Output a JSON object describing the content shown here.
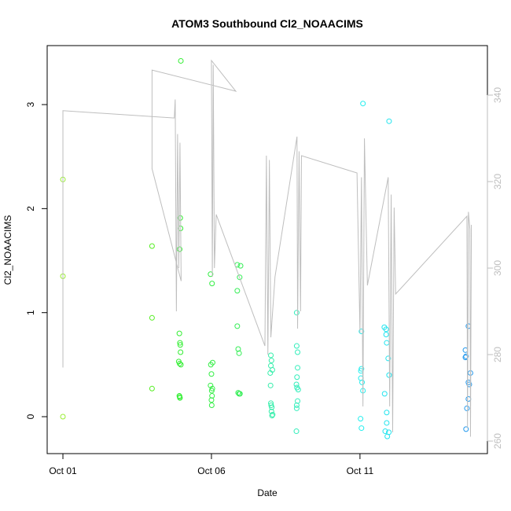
{
  "chart_data": {
    "type": "scatter",
    "title": "ATOM3 Southbound Cl2_NOAACIMS",
    "x_label": "Date",
    "y_label": "Cl2_NOAACIMS",
    "xlim": [
      -0.53,
      14.29
    ],
    "xticks": [
      {
        "value": 0,
        "label": "Oct 01"
      },
      {
        "value": 5,
        "label": "Oct 06"
      },
      {
        "value": 10,
        "label": "Oct 11"
      }
    ],
    "ylim": [
      -0.355,
      3.567
    ],
    "yticks": [
      0,
      1,
      2,
      3
    ],
    "y2lim": [
      257.1,
      351.45
    ],
    "y2ticks": [
      260,
      280,
      300,
      320,
      340
    ],
    "y2_color": "#bebebe",
    "series": [
      {
        "color": "#99ee33",
        "x": [
          0,
          0,
          0
        ],
        "values": [
          2.28,
          1.35,
          0.0
        ]
      },
      {
        "color": "#55ee22",
        "x": [
          3.0,
          3.0,
          3.0
        ],
        "values": [
          1.64,
          0.95,
          0.27
        ]
      },
      {
        "color": "#33ee33",
        "x": [
          3.97,
          3.95,
          3.96,
          3.93,
          3.92,
          3.94,
          3.95,
          3.96,
          3.9,
          3.93,
          3.97,
          3.92,
          3.93,
          3.94
        ],
        "values": [
          3.42,
          1.91,
          1.81,
          1.61,
          0.8,
          0.71,
          0.69,
          0.62,
          0.53,
          0.51,
          0.5,
          0.2,
          0.19,
          0.18
        ]
      },
      {
        "color": "#33ee44",
        "x": [
          4.97,
          5.02,
          5.04,
          4.98,
          5.0,
          4.97,
          5.03,
          5.01,
          5.02,
          5.0,
          5.01
        ],
        "values": [
          1.37,
          1.28,
          0.52,
          0.5,
          0.41,
          0.3,
          0.27,
          0.25,
          0.2,
          0.16,
          0.11
        ]
      },
      {
        "color": "#33ee55",
        "x": [
          5.87,
          5.98,
          5.95,
          5.87,
          5.87,
          5.9,
          5.93,
          5.9,
          5.96,
          5.93
        ],
        "values": [
          1.46,
          1.45,
          1.34,
          1.21,
          0.87,
          0.65,
          0.61,
          0.23,
          0.22,
          0.22
        ]
      },
      {
        "color": "#33eeaa",
        "x": [
          7.0,
          7.02,
          7.0,
          7.05,
          6.98,
          6.99,
          7.0,
          7.01,
          7.03,
          7.02,
          7.06,
          7.04
        ],
        "values": [
          0.59,
          0.54,
          0.49,
          0.45,
          0.42,
          0.3,
          0.13,
          0.11,
          0.09,
          0.05,
          0.02,
          0.01
        ]
      },
      {
        "color": "#33eebb",
        "x": [
          7.87,
          7.87,
          7.9,
          7.9,
          7.88,
          7.86,
          7.88,
          7.92,
          7.9,
          7.87,
          7.87,
          7.86
        ],
        "values": [
          1.0,
          0.68,
          0.62,
          0.47,
          0.38,
          0.31,
          0.28,
          0.26,
          0.15,
          0.11,
          0.08,
          -0.14
        ]
      },
      {
        "color": "#22eeee",
        "x": [
          10.1,
          10.05,
          10.05,
          10.03,
          10.03,
          10.07,
          10.1,
          10.02,
          10.05
        ],
        "values": [
          3.01,
          0.82,
          0.46,
          0.44,
          0.37,
          0.33,
          0.25,
          -0.02,
          -0.11
        ]
      },
      {
        "color": "#22e4ee",
        "x": [
          10.98,
          10.82,
          10.88,
          10.88,
          10.9,
          10.95,
          10.98,
          10.83,
          10.9,
          10.9,
          10.85,
          10.97,
          10.92
        ],
        "values": [
          2.84,
          0.86,
          0.84,
          0.79,
          0.71,
          0.56,
          0.4,
          0.22,
          0.04,
          -0.06,
          -0.14,
          -0.15,
          -0.19
        ]
      },
      {
        "color": "#2299ee",
        "x": [
          13.65,
          13.55,
          13.57,
          13.55,
          13.72,
          13.65,
          13.68,
          13.65,
          13.6,
          13.57
        ],
        "values": [
          0.87,
          0.64,
          0.58,
          0.57,
          0.42,
          0.33,
          0.31,
          0.17,
          0.08,
          -0.12
        ]
      },
      {
        "color": "#bebebe",
        "axis": "y2",
        "style": "line",
        "x": [
          0,
          0,
          3.75,
          3.78,
          3.82,
          3.86,
          3.9,
          3.94,
          3.98,
          3.0,
          3.0,
          5.82,
          5.0,
          5.03,
          5.06,
          5.1,
          5.16,
          6.8,
          6.85,
          6.9,
          6.95,
          7.0,
          7.14,
          7.88,
          7.9,
          7.95,
          8.0,
          8.03,
          9.9,
          10.0,
          10.05,
          10.1,
          10.15,
          10.25,
          10.95,
          11.0,
          11.05,
          11.1,
          11.15,
          11.2,
          13.6,
          13.62,
          13.65,
          13.7,
          13.72,
          13.75
        ],
        "values": [
          277,
          336.4,
          334.7,
          339,
          290,
          331,
          300,
          329,
          297,
          323,
          345.8,
          340.9,
          348,
          298,
          347,
          300,
          312.4,
          282,
          326,
          280,
          325,
          284,
          298,
          330.4,
          286,
          327,
          290,
          326,
          322,
          285,
          321,
          268,
          330,
          296,
          321,
          268,
          317,
          262,
          314,
          294,
          312,
          263,
          313,
          309,
          261,
          310
        ]
      }
    ]
  }
}
